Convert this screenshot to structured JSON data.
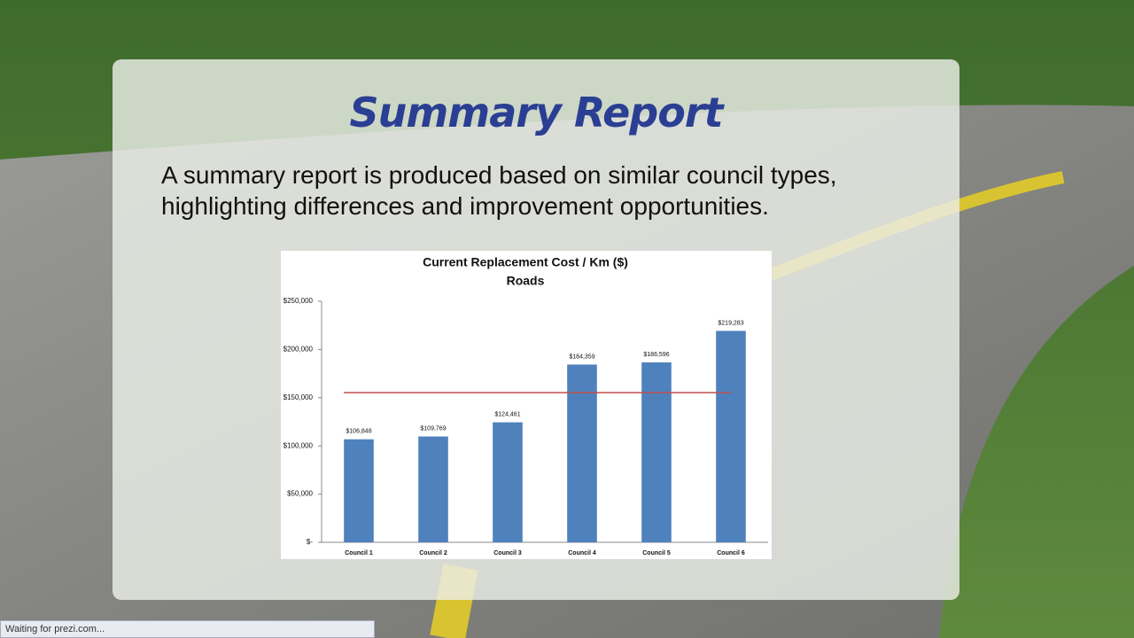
{
  "slide": {
    "title": "Summary Report",
    "body": "A summary report is produced based on similar council types, highlighting differences and improvement opportunities."
  },
  "status": "Waiting for prezi.com...",
  "chart_data": {
    "type": "bar",
    "title": "Current Replacement Cost / Km ($)",
    "subtitle": "Roads",
    "categories": [
      "Council 1",
      "Council 2",
      "Council 3",
      "Council 4",
      "Council 5",
      "Council 6"
    ],
    "values": [
      106848,
      109769,
      124461,
      184359,
      186596,
      219283
    ],
    "value_labels": [
      "$106,848",
      "$109,769",
      "$124,461",
      "$184,359",
      "$186,596",
      "$219,283"
    ],
    "color": "#4f81bd",
    "reference_line": {
      "value": 155219,
      "color": "#c0504d"
    },
    "ylim": [
      0,
      250000
    ],
    "yticks": [
      {
        "value": 0,
        "label": "$-"
      },
      {
        "value": 50000,
        "label": "$50,000"
      },
      {
        "value": 100000,
        "label": "$100,000"
      },
      {
        "value": 150000,
        "label": "$150,000"
      },
      {
        "value": 200000,
        "label": "$200,000"
      },
      {
        "value": 250000,
        "label": "$250,000"
      }
    ],
    "grid": false
  }
}
